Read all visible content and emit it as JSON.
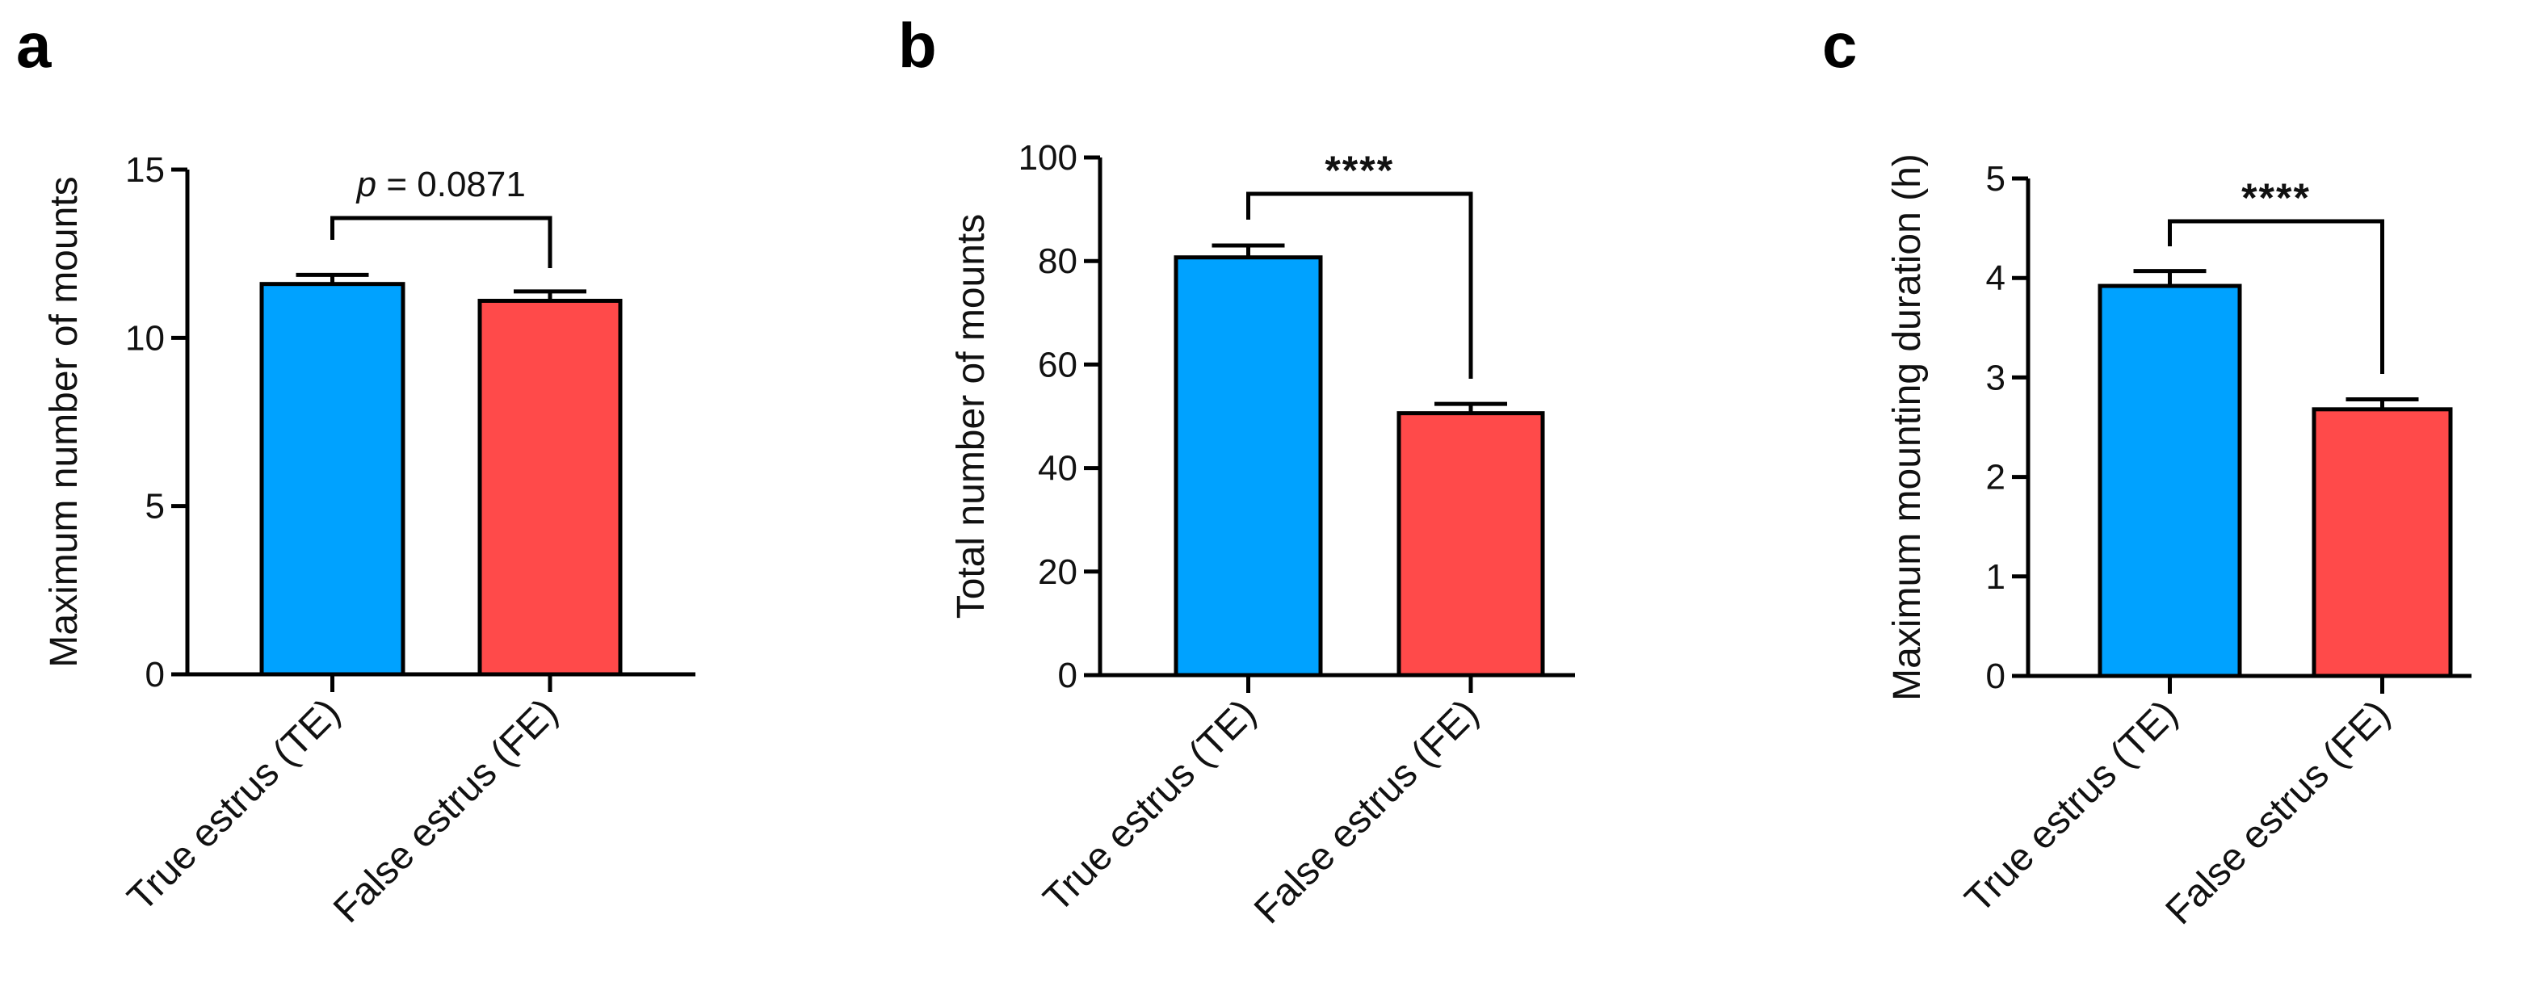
{
  "chart_data": [
    {
      "type": "bar",
      "panel_label": "a",
      "categories": [
        "True estrus (TE)",
        "False estrus (FE)"
      ],
      "values": [
        11.6,
        11.1
      ],
      "error": [
        0.27,
        0.28
      ],
      "colors": [
        "#00A2FF",
        "#FF4A4A"
      ],
      "ylabel": "Maximum number of mounts",
      "xlabel": "",
      "ylim": [
        0,
        15
      ],
      "yticks": [
        0,
        5,
        10,
        15
      ],
      "annotation": {
        "text_prefix": "p",
        "text": " = 0.0871"
      },
      "grid": false
    },
    {
      "type": "bar",
      "panel_label": "b",
      "categories": [
        "True estrus (TE)",
        "False estrus (FE)"
      ],
      "values": [
        80.7,
        50.6
      ],
      "error": [
        2.3,
        1.8
      ],
      "colors": [
        "#00A2FF",
        "#FF4A4A"
      ],
      "ylabel": "Total number of mounts",
      "xlabel": "",
      "ylim": [
        0,
        100
      ],
      "yticks": [
        0,
        20,
        40,
        60,
        80,
        100
      ],
      "annotation": {
        "text": "****"
      },
      "grid": false
    },
    {
      "type": "bar",
      "panel_label": "c",
      "categories": [
        "True estrus (TE)",
        "False estrus (FE)"
      ],
      "values": [
        3.92,
        2.68
      ],
      "error": [
        0.15,
        0.1
      ],
      "colors": [
        "#00A2FF",
        "#FF4A4A"
      ],
      "ylabel": "Maximum mounting duration (h)",
      "xlabel": "",
      "ylim": [
        0,
        5
      ],
      "yticks": [
        0,
        1,
        2,
        3,
        4,
        5
      ],
      "annotation": {
        "text": "****"
      },
      "grid": false
    }
  ]
}
